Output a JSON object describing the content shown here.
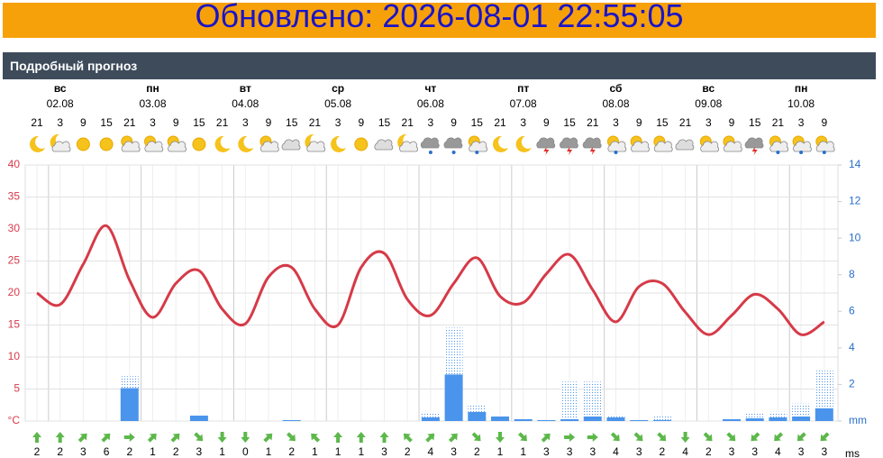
{
  "banner": {
    "updated": "Обновлено: 2026-08-01 22:55:05"
  },
  "section_title": "Подробный прогноз",
  "chart_data": {
    "type": "weather",
    "days": [
      {
        "name": "вс",
        "date": "02.08"
      },
      {
        "name": "пн",
        "date": "03.08"
      },
      {
        "name": "вт",
        "date": "04.08"
      },
      {
        "name": "ср",
        "date": "05.08"
      },
      {
        "name": "чт",
        "date": "06.08"
      },
      {
        "name": "пт",
        "date": "07.08"
      },
      {
        "name": "сб",
        "date": "08.08"
      },
      {
        "name": "вс",
        "date": "09.08"
      },
      {
        "name": "пн",
        "date": "10.08"
      }
    ],
    "hours": [
      21,
      3,
      9,
      15,
      21,
      3,
      9,
      15,
      21,
      3,
      9,
      15,
      21,
      3,
      9,
      15,
      21,
      3,
      9,
      15,
      21,
      3,
      9,
      15,
      21,
      3,
      9,
      15,
      21,
      3,
      9,
      15,
      21,
      3,
      9
    ],
    "icons": [
      "moon",
      "moon-cloud",
      "sun",
      "sun",
      "sun-cloud",
      "sun-cloud",
      "sun-cloud",
      "sun",
      "moon",
      "moon",
      "sun-cloud",
      "cloud",
      "moon-cloud",
      "moon",
      "sun",
      "cloud",
      "moon-cloud",
      "rain",
      "rain",
      "sun-rain",
      "moon",
      "moon",
      "storm",
      "storm",
      "storm",
      "sun-rain",
      "sun-cloud",
      "sun-cloud",
      "cloud",
      "sun-cloud",
      "sun-cloud",
      "storm",
      "sun-rain",
      "sun-rain",
      "sun-rain"
    ],
    "series": [
      {
        "color": "#d63a48",
        "values": [
          20,
          18.2,
          24.5,
          30.5,
          22,
          16.2,
          21.5,
          23.5,
          17.5,
          15.2,
          22.5,
          24,
          17.5,
          15,
          24,
          26.2,
          19,
          16.5,
          21.5,
          25.5,
          19.5,
          18.5,
          23,
          26,
          20.5,
          15.5,
          21,
          21.5,
          17,
          13.5,
          16.5,
          19.8,
          17.5,
          13.5,
          15.5
        ]
      },
      {
        "color": "#4a94ec",
        "axis": "y2",
        "values": [
          0,
          0,
          0,
          0,
          1.8,
          0,
          0,
          0.3,
          0,
          0,
          0,
          0.05,
          0,
          0,
          0,
          0,
          0,
          0.2,
          2.55,
          0.5,
          0.25,
          0.1,
          0.05,
          0.1,
          0.25,
          0.2,
          0.05,
          0.05,
          0,
          0,
          0.1,
          0.15,
          0.2,
          0.25,
          0.7
        ]
      },
      {
        "color": "#4a94ec",
        "axis": "y2",
        "pattern": "dotted",
        "values": [
          0,
          0,
          0,
          0,
          0.65,
          0,
          0,
          0.05,
          0,
          0,
          0,
          0,
          0,
          0,
          0,
          0,
          0,
          0.2,
          2.55,
          0.4,
          0.05,
          0,
          0,
          2.05,
          1.9,
          0.15,
          0,
          0.25,
          0,
          0,
          0,
          0.25,
          0.3,
          0.7,
          2.05
        ]
      }
    ],
    "ylim": [
      0,
      40
    ],
    "yticks": [
      {
        "value": 0,
        "label": "°C"
      },
      5,
      10,
      15,
      20,
      25,
      30,
      35,
      40
    ],
    "y2lim": [
      0,
      14
    ],
    "y2ticks": [
      {
        "value": 0,
        "label": "mm"
      },
      2,
      4,
      6,
      8,
      10,
      12,
      14
    ],
    "grid": true,
    "wind": {
      "unit": "ms",
      "color": "#5cb84a",
      "speeds": [
        2,
        2,
        3,
        6,
        2,
        1,
        2,
        3,
        1,
        0,
        1,
        2,
        1,
        1,
        1,
        3,
        2,
        4,
        3,
        2,
        1,
        1,
        3,
        3,
        3,
        4,
        3,
        2,
        4,
        2,
        3,
        3,
        4,
        3,
        3
      ],
      "directions": [
        0,
        0,
        45,
        45,
        90,
        45,
        45,
        135,
        180,
        180,
        45,
        135,
        315,
        0,
        0,
        0,
        315,
        45,
        45,
        135,
        180,
        135,
        45,
        90,
        90,
        135,
        135,
        135,
        180,
        135,
        135,
        225,
        225,
        225,
        225
      ]
    }
  }
}
